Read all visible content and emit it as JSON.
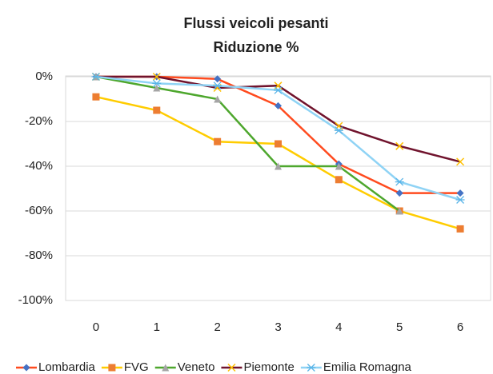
{
  "chart_data": {
    "type": "line",
    "title": [
      "Flussi veicoli pesanti",
      "Riduzione %"
    ],
    "categories": [
      0,
      1,
      2,
      3,
      4,
      5,
      6
    ],
    "ylim": [
      -100,
      0
    ],
    "yticks": [
      {
        "value": 0,
        "label": "0%"
      },
      {
        "value": -20,
        "label": "-20%"
      },
      {
        "value": -40,
        "label": "-40%"
      },
      {
        "value": -60,
        "label": "-60%"
      },
      {
        "value": -80,
        "label": "-80%"
      },
      {
        "value": -100,
        "label": "-100%"
      }
    ],
    "grid": true,
    "legend": "bottom",
    "series": [
      {
        "name": "Lombardia",
        "color": "#ff4b1f",
        "marker": "diamond",
        "marker_color": "#4472c4",
        "values": [
          0,
          0,
          -1,
          -13,
          -39,
          -52,
          -52
        ]
      },
      {
        "name": "FVG",
        "color": "#ffcc00",
        "marker": "square",
        "marker_color": "#ed7d31",
        "values": [
          -9,
          -15,
          -29,
          -30,
          -46,
          -60,
          -68
        ]
      },
      {
        "name": "Veneto",
        "color": "#4ea72e",
        "marker": "triangle",
        "marker_color": "#a5a5a5",
        "values": [
          0,
          -5,
          -10,
          -40,
          -40,
          -60,
          null
        ]
      },
      {
        "name": "Piemonte",
        "color": "#70132d",
        "marker": "x",
        "marker_color": "#ffc000",
        "values": [
          0,
          0,
          -5,
          -4,
          -22,
          -31,
          -38
        ]
      },
      {
        "name": "Emilia Romagna",
        "color": "#8fd3f5",
        "marker": "star",
        "marker_color": "#5bb5e8",
        "values": [
          0,
          -3,
          -4,
          -6,
          -24,
          -47,
          -55
        ]
      }
    ]
  }
}
